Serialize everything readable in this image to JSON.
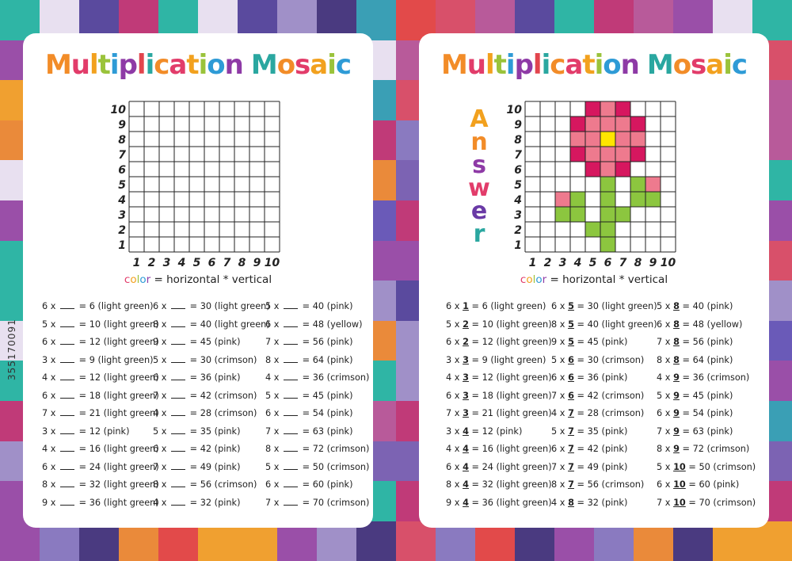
{
  "title": "Multiplication Mosaic",
  "answer_word": "Answer",
  "formula": {
    "color": "color",
    "rest": " = horizontal * vertical"
  },
  "grid": {
    "rows": [
      "10",
      "9",
      "8",
      "7",
      "6",
      "5",
      "4",
      "3",
      "2",
      "1"
    ],
    "cols": [
      "1",
      "2",
      "3",
      "4",
      "5",
      "6",
      "7",
      "8",
      "9",
      "10"
    ]
  },
  "colors": {
    "pink": "#ee7a8e",
    "crimson": "#d6175f",
    "light_green": "#8cc63f",
    "yellow": "#ffe500"
  },
  "equations": [
    [
      "6",
      "1",
      "6",
      "light green"
    ],
    [
      "5",
      "2",
      "10",
      "light green"
    ],
    [
      "6",
      "2",
      "12",
      "light green"
    ],
    [
      "3",
      "3",
      "9",
      "light green"
    ],
    [
      "4",
      "3",
      "12",
      "light green"
    ],
    [
      "6",
      "3",
      "18",
      "light green"
    ],
    [
      "7",
      "3",
      "21",
      "light green"
    ],
    [
      "3",
      "4",
      "12",
      "pink"
    ],
    [
      "4",
      "4",
      "16",
      "light green"
    ],
    [
      "6",
      "4",
      "24",
      "light green"
    ],
    [
      "8",
      "4",
      "32",
      "light green"
    ],
    [
      "9",
      "4",
      "36",
      "light green"
    ],
    [
      "6",
      "5",
      "30",
      "light green"
    ],
    [
      "8",
      "5",
      "40",
      "light green"
    ],
    [
      "9",
      "5",
      "45",
      "pink"
    ],
    [
      "5",
      "6",
      "30",
      "crimson"
    ],
    [
      "6",
      "6",
      "36",
      "pink"
    ],
    [
      "7",
      "6",
      "42",
      "crimson"
    ],
    [
      "4",
      "7",
      "28",
      "crimson"
    ],
    [
      "5",
      "7",
      "35",
      "pink"
    ],
    [
      "6",
      "7",
      "42",
      "pink"
    ],
    [
      "7",
      "7",
      "49",
      "pink"
    ],
    [
      "8",
      "7",
      "56",
      "crimson"
    ],
    [
      "4",
      "8",
      "32",
      "pink"
    ],
    [
      "5",
      "8",
      "40",
      "pink"
    ],
    [
      "6",
      "8",
      "48",
      "yellow"
    ],
    [
      "7",
      "8",
      "56",
      "pink"
    ],
    [
      "8",
      "8",
      "64",
      "pink"
    ],
    [
      "4",
      "9",
      "36",
      "crimson"
    ],
    [
      "5",
      "9",
      "45",
      "pink"
    ],
    [
      "6",
      "9",
      "54",
      "pink"
    ],
    [
      "7",
      "9",
      "63",
      "pink"
    ],
    [
      "8",
      "9",
      "72",
      "crimson"
    ],
    [
      "5",
      "10",
      "50",
      "crimson"
    ],
    [
      "6",
      "10",
      "60",
      "pink"
    ],
    [
      "7",
      "10",
      "70",
      "crimson"
    ]
  ],
  "watermark": "355170091"
}
